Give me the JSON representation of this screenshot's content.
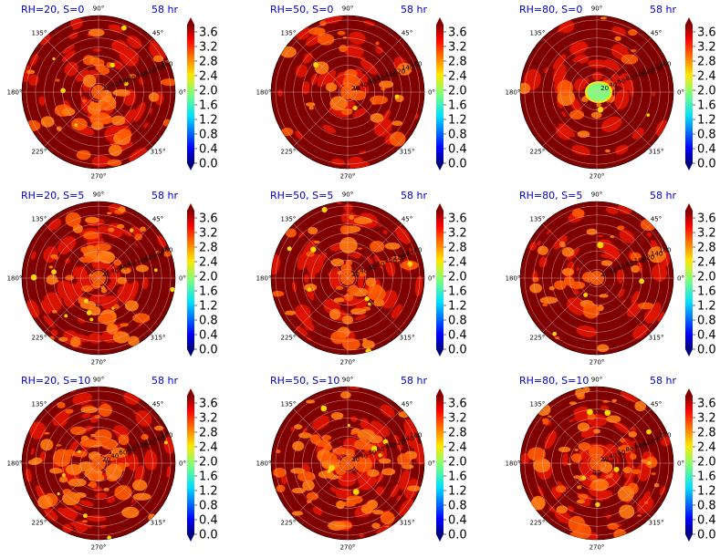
{
  "figure": {
    "panels": [
      {
        "title": "RH=20, S=0",
        "time": "58 hr"
      },
      {
        "title": "RH=50, S=0",
        "time": "58 hr"
      },
      {
        "title": "RH=80, S=0",
        "time": "58 hr"
      },
      {
        "title": "RH=20, S=5",
        "time": "58 hr"
      },
      {
        "title": "RH=50, S=5",
        "time": "58 hr"
      },
      {
        "title": "RH=80, S=5",
        "time": "58 hr"
      },
      {
        "title": "RH=20, S=10",
        "time": "58 hr"
      },
      {
        "title": "RH=50, S=10",
        "time": "58 hr"
      },
      {
        "title": "RH=80, S=10",
        "time": "58 hr"
      }
    ]
  },
  "chart_data": {
    "type": "heatmap",
    "projection": "polar",
    "layout": "3x3 grid",
    "angle_tick_labels": [
      "0°",
      "45°",
      "90°",
      "135°",
      "180°",
      "225°",
      "270°",
      "315°"
    ],
    "radial_tick_labels": [
      "20",
      "40",
      "60",
      "80",
      "100",
      "120",
      "140",
      "160"
    ],
    "colorbar": {
      "ticks": [
        "0.0",
        "0.4",
        "0.8",
        "1.2",
        "1.6",
        "2.0",
        "2.4",
        "2.8",
        "3.2",
        "3.6"
      ],
      "range": [
        0.0,
        3.8
      ],
      "colormap": "jet",
      "extend": "both"
    },
    "colors": {
      "background": "#800000",
      "title": "#0000cc",
      "grid": "#e8b8b8"
    }
  }
}
